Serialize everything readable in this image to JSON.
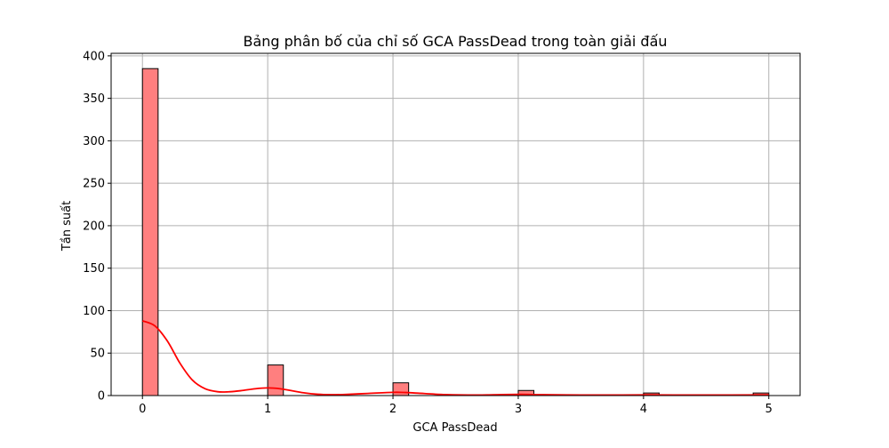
{
  "chart_data": {
    "type": "bar",
    "title": "Bảng phân bố của chỉ số GCA PassDead trong toàn giải đấu",
    "xlabel": "GCA PassDead",
    "ylabel": "Tần suất",
    "xlim": [
      -0.25,
      5.25
    ],
    "ylim": [
      0,
      403
    ],
    "x_ticks": [
      0,
      1,
      2,
      3,
      4,
      5
    ],
    "y_ticks": [
      0,
      50,
      100,
      150,
      200,
      250,
      300,
      350,
      400
    ],
    "grid": true,
    "bar_color": "#ff7f7f",
    "bar_edge_color": "#000000",
    "kde_color": "#ff0000",
    "bins": [
      {
        "x0": 0.0,
        "x1": 0.125,
        "count": 385
      },
      {
        "x0": 1.0,
        "x1": 1.125,
        "count": 36
      },
      {
        "x0": 2.0,
        "x1": 2.125,
        "count": 15
      },
      {
        "x0": 3.0,
        "x1": 3.125,
        "count": 6
      },
      {
        "x0": 4.0,
        "x1": 4.125,
        "count": 3
      },
      {
        "x0": 4.875,
        "x1": 5.0,
        "count": 3
      }
    ],
    "kde": {
      "x": [
        0.0,
        0.1,
        0.2,
        0.3,
        0.4,
        0.5,
        0.6,
        0.7,
        0.8,
        0.9,
        1.0,
        1.1,
        1.2,
        1.3,
        1.4,
        1.5,
        1.6,
        1.8,
        2.0,
        2.1,
        2.2,
        2.4,
        2.6,
        2.8,
        3.0,
        3.2,
        3.5,
        4.0,
        4.5,
        5.0
      ],
      "y": [
        88,
        82,
        64,
        38,
        18,
        8,
        4.5,
        4.5,
        6,
        8,
        9,
        8,
        5.5,
        3,
        1.5,
        1,
        1.2,
        2.5,
        3.8,
        3.6,
        2.8,
        1.2,
        0.6,
        0.9,
        1.4,
        1.0,
        0.6,
        0.7,
        0.6,
        0.7
      ]
    }
  }
}
